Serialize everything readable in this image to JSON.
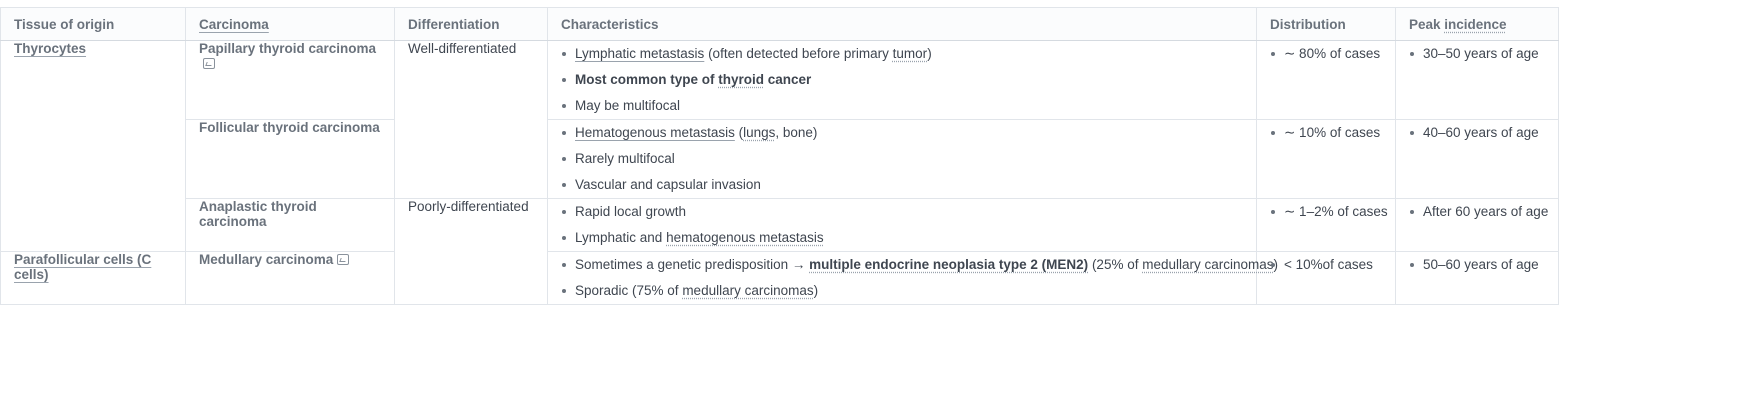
{
  "table": {
    "headers": {
      "tissue": "Tissue of origin",
      "carcinoma": "Carcinoma",
      "differentiation": "Differentiation",
      "characteristics": "Characteristics",
      "distribution": "Distribution",
      "peak": "Peak incidence"
    },
    "tissue": {
      "thyrocytes": "Thyrocytes",
      "parafollicular": "Parafollicular cells (C cells)"
    },
    "differentiation": {
      "well": "Well-differentiated",
      "poor": "Poorly-differentiated"
    },
    "rows": [
      {
        "carcinoma": "Papillary thyroid carcinoma",
        "characteristics": {
          "c1_link": "Lymphatic metastasis",
          "c1_rest": " (often detected before primary ",
          "c1_link2": "tumor",
          "c1_end": ")",
          "c2_a": "Most common type of ",
          "c2_link": "thyroid",
          "c2_b": " cancer",
          "c3": "May be multifocal"
        },
        "distribution": "∼ 80% of cases",
        "peak": "30–50 years of age"
      },
      {
        "carcinoma": "Follicular thyroid carcinoma",
        "characteristics": {
          "c1_link": "Hematogenous metastasis",
          "c1_a": " (",
          "c1_link2": "lungs",
          "c1_b": ", bone)",
          "c2": "Rarely multifocal",
          "c3": "Vascular and capsular invasion"
        },
        "distribution": "∼ 10% of cases",
        "peak": "40–60 years of age"
      },
      {
        "carcinoma": "Anaplastic thyroid carcinoma",
        "characteristics": {
          "c1": "Rapid local growth",
          "c2_a": "Lymphatic and ",
          "c2_link": "hematogenous metastasis"
        },
        "distribution": "∼ 1–2% of cases",
        "peak": "After 60 years of age"
      },
      {
        "carcinoma": "Medullary carcinoma",
        "characteristics": {
          "c1_a": "Sometimes a genetic predisposition → ",
          "c1_link": "multiple endocrine neoplasia type 2 (MEN2)",
          "c1_b": " (25% of ",
          "c1_link2": "medullary carcinomas",
          "c1_c": ")",
          "c2_a": "Sporadic (75% of ",
          "c2_link": "medullary carcinomas",
          "c2_b": ")"
        },
        "distribution": "< 10%of cases",
        "peak": "50–60 years of age"
      }
    ]
  }
}
